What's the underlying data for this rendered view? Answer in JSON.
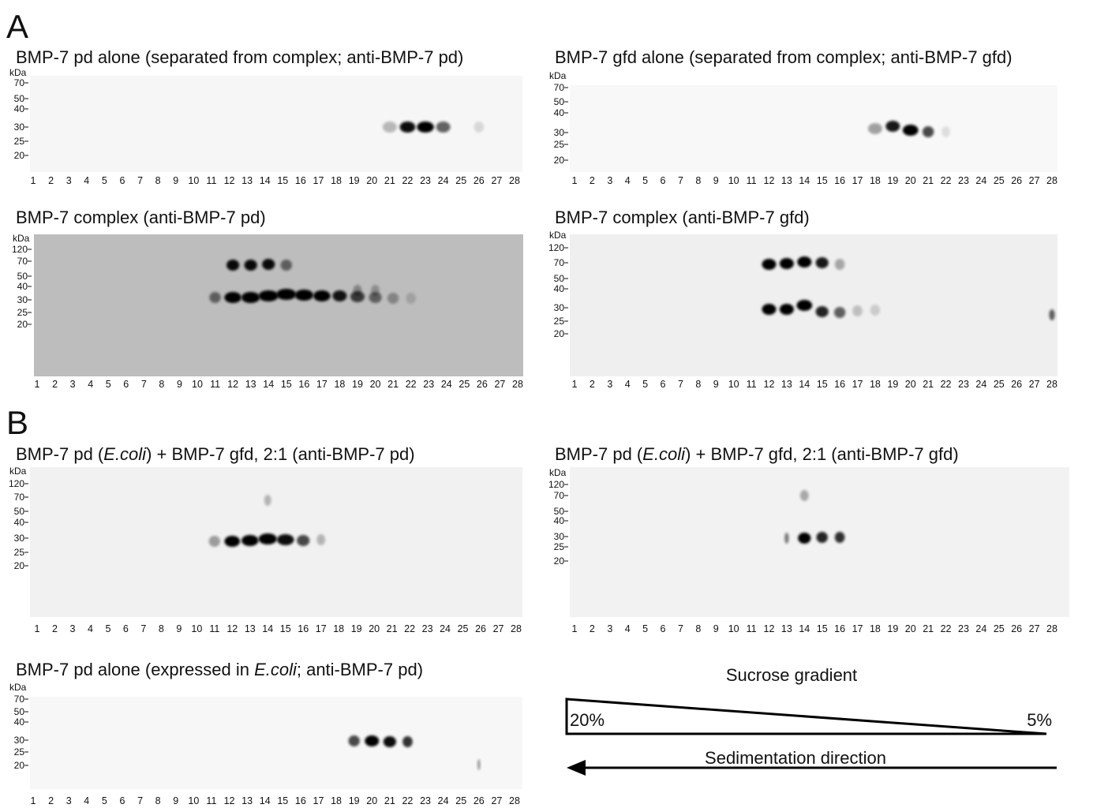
{
  "figure": {
    "panel_labels": [
      "A",
      "B"
    ],
    "kda_unit": "kDa",
    "lanes": [
      "1",
      "2",
      "3",
      "4",
      "5",
      "6",
      "7",
      "8",
      "9",
      "10",
      "11",
      "12",
      "13",
      "14",
      "15",
      "16",
      "17",
      "18",
      "19",
      "20",
      "21",
      "22",
      "23",
      "24",
      "25",
      "26",
      "27",
      "28"
    ],
    "panels": [
      {
        "title": [
          "BMP-7 pd alone (separated from complex; anti-BMP-7 pd)"
        ],
        "kda": [
          "70",
          "50",
          "40",
          "30",
          "25",
          "20"
        ]
      },
      {
        "title": [
          "BMP-7 gfd alone (separated from complex; anti-BMP-7 gfd)"
        ],
        "kda": [
          "70",
          "50",
          "40",
          "30",
          "25",
          "20"
        ]
      },
      {
        "title": [
          "BMP-7 complex (anti-BMP-7 pd)"
        ],
        "kda": [
          "120",
          "70",
          "50",
          "40",
          "30",
          "25",
          "20"
        ]
      },
      {
        "title": [
          "BMP-7 complex (anti-BMP-7 gfd)"
        ],
        "kda": [
          "120",
          "70",
          "50",
          "40",
          "30",
          "25",
          "20"
        ]
      },
      {
        "title": [
          "BMP-7 pd (",
          "E.coli",
          ") + BMP-7 gfd, 2:1 (anti-BMP-7 pd)"
        ],
        "kda": [
          "120",
          "70",
          "50",
          "40",
          "30",
          "25",
          "20"
        ]
      },
      {
        "title": [
          "BMP-7 pd (",
          "E.coli",
          ") + BMP-7 gfd, 2:1 (anti-BMP-7 gfd)"
        ],
        "kda": [
          "120",
          "70",
          "50",
          "40",
          "30",
          "25",
          "20"
        ]
      },
      {
        "title": [
          "BMP-7 pd alone (expressed in ",
          "E.coli",
          "; anti-BMP-7 pd)"
        ],
        "kda": [
          "70",
          "50",
          "40",
          "30",
          "25",
          "20"
        ]
      }
    ],
    "gradient": {
      "title": "Sucrose gradient",
      "high": "20%",
      "low": "5%",
      "direction": "Sedimentation direction"
    }
  }
}
